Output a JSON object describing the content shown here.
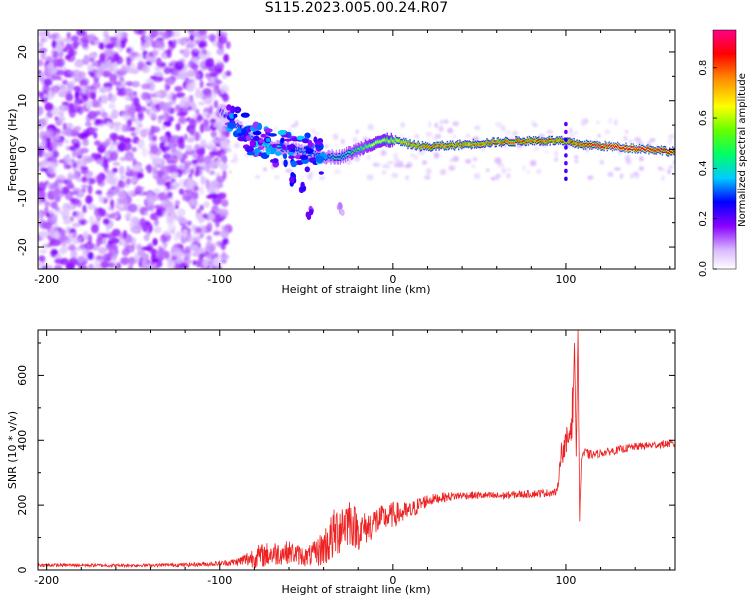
{
  "title": "S115.2023.005.00.24.R07",
  "panels": {
    "top": {
      "xlabel": "Height of straight line (km)",
      "ylabel": "Frequency (Hz)",
      "colorbar_label": "Normalized spectral amplitude"
    },
    "bottom": {
      "xlabel": "Height of straight line (km)",
      "ylabel": "SNR (10 * v/v)"
    }
  },
  "chart_data": [
    {
      "type": "heatmap",
      "title": "S115.2023.005.00.24.R07",
      "xlabel": "Height of straight line (km)",
      "ylabel": "Frequency (Hz)",
      "xlim": [
        -205,
        163
      ],
      "ylim": [
        -24.5,
        24.5
      ],
      "xticks": [
        -200,
        -100,
        0,
        100
      ],
      "yticks": [
        -20,
        -10,
        0,
        10,
        20
      ],
      "colorbar": {
        "label": "Normalized spectral amplitude",
        "range": [
          0,
          0.95
        ],
        "ticks": [
          0.0,
          0.2,
          0.4,
          0.6,
          0.8
        ],
        "colormap": [
          "#ffffff",
          "#8a00ff",
          "#0000ff",
          "#00ccff",
          "#00ff00",
          "#ffff00",
          "#ff0000",
          "#ff0088"
        ]
      },
      "ridge": [
        {
          "x": -100,
          "freq": 8.0,
          "amp": 0.18
        },
        {
          "x": -90,
          "freq": 5.0,
          "amp": 0.25
        },
        {
          "x": -80,
          "freq": 2.0,
          "amp": 0.3
        },
        {
          "x": -70,
          "freq": 0.5,
          "amp": 0.32
        },
        {
          "x": -60,
          "freq": 0.0,
          "amp": 0.34
        },
        {
          "x": -50,
          "freq": -0.5,
          "amp": 0.3
        },
        {
          "x": -40,
          "freq": -1.5,
          "amp": 0.33
        },
        {
          "x": -30,
          "freq": -1.5,
          "amp": 0.38
        },
        {
          "x": -20,
          "freq": 0.0,
          "amp": 0.45
        },
        {
          "x": -10,
          "freq": 1.5,
          "amp": 0.55
        },
        {
          "x": 0,
          "freq": 2.0,
          "amp": 0.6
        },
        {
          "x": 10,
          "freq": 1.0,
          "amp": 0.7
        },
        {
          "x": 20,
          "freq": 0.5,
          "amp": 0.75
        },
        {
          "x": 40,
          "freq": 1.0,
          "amp": 0.72
        },
        {
          "x": 60,
          "freq": 1.5,
          "amp": 0.75
        },
        {
          "x": 80,
          "freq": 1.8,
          "amp": 0.78
        },
        {
          "x": 95,
          "freq": 1.8,
          "amp": 0.76
        },
        {
          "x": 110,
          "freq": 1.0,
          "amp": 0.8
        },
        {
          "x": 130,
          "freq": 0.5,
          "amp": 0.9
        },
        {
          "x": 150,
          "freq": 0.0,
          "amp": 0.85
        },
        {
          "x": 163,
          "freq": -0.5,
          "amp": 0.8
        }
      ],
      "secondary_tracks": [
        {
          "x": -58,
          "freq": -6.0,
          "amp": 0.25
        },
        {
          "x": -52,
          "freq": -8.0,
          "amp": 0.22
        },
        {
          "x": -48,
          "freq": -13.0,
          "amp": 0.18
        },
        {
          "x": -30,
          "freq": -12.0,
          "amp": 0.1
        }
      ]
    },
    {
      "type": "line",
      "xlabel": "Height of straight line (km)",
      "ylabel": "SNR (10 * v/v)",
      "xlim": [
        -205,
        163
      ],
      "ylim": [
        0,
        740
      ],
      "xticks": [
        -200,
        -100,
        0,
        100
      ],
      "yticks": [
        0,
        200,
        400,
        600
      ],
      "color": "#ee2222",
      "series": [
        {
          "x": [
            -205,
            -180,
            -160,
            -140,
            -120,
            -100,
            -90,
            -80,
            -70,
            -60,
            -50,
            -45,
            -40,
            -35,
            -30,
            -25,
            -20,
            -15,
            -10,
            -5,
            0,
            5,
            10,
            15,
            20,
            25,
            30,
            40,
            50,
            60,
            70,
            80,
            90,
            95,
            97,
            100,
            102,
            104,
            105,
            106,
            107,
            108,
            109,
            110,
            115,
            120,
            130,
            135,
            140,
            150,
            160,
            163
          ],
          "y": [
            15,
            15,
            14,
            15,
            16,
            20,
            25,
            40,
            50,
            55,
            40,
            50,
            70,
            100,
            140,
            155,
            120,
            130,
            150,
            160,
            170,
            175,
            180,
            200,
            215,
            220,
            225,
            230,
            230,
            228,
            232,
            235,
            238,
            240,
            360,
            380,
            420,
            500,
            700,
            350,
            740,
            150,
            350,
            360,
            355,
            360,
            370,
            375,
            380,
            385,
            390,
            385
          ],
          "noise_amplitude": [
            5,
            5,
            5,
            5,
            6,
            8,
            12,
            35,
            40,
            35,
            30,
            40,
            60,
            80,
            90,
            80,
            60,
            50,
            50,
            40,
            40,
            35,
            30,
            25,
            20,
            15,
            15,
            12,
            12,
            12,
            12,
            12,
            12,
            12,
            30,
            50,
            60,
            80,
            0,
            0,
            0,
            0,
            40,
            20,
            12,
            12,
            12,
            12,
            12,
            12,
            12,
            12
          ]
        }
      ]
    }
  ]
}
